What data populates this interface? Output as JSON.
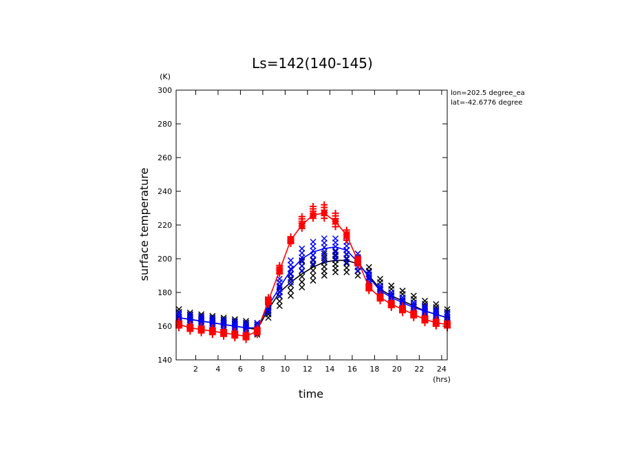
{
  "chart_data": {
    "type": "line",
    "title": "Ls=142(140-145)",
    "xlabel": "time",
    "ylabel": "surface temperature",
    "x_unit": "(hrs)",
    "y_unit": "(K)",
    "xlim": [
      0.25,
      24.5
    ],
    "ylim": [
      140,
      300
    ],
    "xticks": [
      2,
      4,
      6,
      8,
      10,
      12,
      14,
      16,
      18,
      20,
      22,
      24
    ],
    "yticks": [
      140,
      160,
      180,
      200,
      220,
      240,
      260,
      280,
      300
    ],
    "annotations": [
      "lon=202.5 degree_ea",
      "lat=-42.6776 degree"
    ],
    "x": [
      0.5,
      1.5,
      2.5,
      3.5,
      4.5,
      5.5,
      6.5,
      7.5,
      8.5,
      9.5,
      10.5,
      11.5,
      12.5,
      13.5,
      14.5,
      15.5,
      16.5,
      17.5,
      18.5,
      19.5,
      20.5,
      21.5,
      22.5,
      23.5,
      24.5
    ],
    "series": [
      {
        "color": "#000000",
        "line": [
          165,
          164,
          163,
          162,
          161,
          160,
          159,
          158,
          170,
          180,
          186,
          191,
          195,
          198,
          199,
          199,
          197,
          190,
          182,
          178,
          175,
          172,
          169,
          167,
          165
        ],
        "scatter_marker": "x",
        "scatter_min": [
          162,
          161,
          160,
          159,
          158,
          157,
          156,
          155,
          165,
          172,
          178,
          183,
          187,
          190,
          192,
          192,
          190,
          184,
          178,
          174,
          171,
          168,
          166,
          164,
          162
        ],
        "scatter_max": [
          170,
          168,
          167,
          166,
          165,
          164,
          163,
          161,
          175,
          186,
          194,
          199,
          202,
          203,
          204,
          205,
          203,
          195,
          188,
          184,
          181,
          178,
          175,
          173,
          170
        ]
      },
      {
        "color": "#0000ff",
        "line": [
          165,
          164,
          163,
          162,
          161,
          160,
          159,
          159,
          172,
          183,
          193,
          200,
          204,
          206,
          207,
          205,
          198,
          189,
          181,
          177,
          174,
          171,
          169,
          167,
          165
        ],
        "scatter_marker": "x",
        "scatter_min": [
          162,
          161,
          160,
          159,
          158,
          157,
          156,
          156,
          168,
          178,
          186,
          193,
          197,
          199,
          200,
          198,
          193,
          185,
          178,
          174,
          171,
          168,
          166,
          164,
          162
        ],
        "scatter_max": [
          168,
          167,
          166,
          165,
          164,
          163,
          162,
          162,
          176,
          188,
          199,
          206,
          210,
          212,
          212,
          210,
          203,
          192,
          184,
          180,
          177,
          174,
          172,
          170,
          168
        ]
      },
      {
        "color": "#ff0000",
        "line": [
          161,
          159,
          158,
          157,
          156,
          155,
          154,
          157,
          175,
          193,
          211,
          220,
          226,
          227,
          222,
          214,
          199,
          183,
          177,
          173,
          170,
          167,
          164,
          162,
          161
        ],
        "scatter_marker": "+",
        "scatter_min": [
          159,
          157,
          156,
          155,
          154,
          153,
          152,
          155,
          173,
          191,
          209,
          218,
          224,
          224,
          219,
          211,
          196,
          181,
          175,
          171,
          168,
          165,
          162,
          160,
          159
        ],
        "scatter_max": [
          163,
          161,
          160,
          159,
          158,
          157,
          156,
          159,
          177,
          196,
          213,
          225,
          231,
          232,
          227,
          217,
          201,
          185,
          179,
          175,
          172,
          169,
          166,
          164,
          163
        ]
      }
    ]
  }
}
